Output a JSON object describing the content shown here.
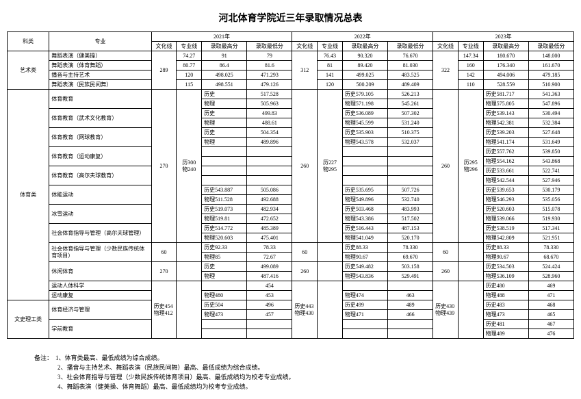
{
  "title": "河北体育学院近三年录取情况总表",
  "head": {
    "cat": "科类",
    "major": "专业",
    "y21": "2021年",
    "y22": "2022年",
    "y23": "2023年",
    "wh": "文化线",
    "zy": "专业线",
    "hi": "录取最高分",
    "lo": "录取最低分"
  },
  "cats": {
    "art": "艺术类",
    "sport": "体育类",
    "wen": "文史理工类"
  },
  "art_wh": {
    "y21": "289",
    "y22": "312",
    "y23": "322"
  },
  "art": [
    {
      "m": "舞蹈表演（健美操）",
      "z1": "74.27",
      "h1": "91",
      "l1": "79",
      "z2": "76.43",
      "h2": "90.320",
      "l2": "76.670",
      "z3": "147.34",
      "h3": "180.670",
      "l3": "148.000"
    },
    {
      "m": "舞蹈表演（体育舞蹈）",
      "z1": "80.77",
      "h1": "86.4",
      "l1": "81.6",
      "z2": "81",
      "h2": "89.420",
      "l2": "81.030",
      "z3": "160",
      "h3": "176.340",
      "l3": "161.670"
    },
    {
      "m": "播音与主持艺术",
      "z1": "120",
      "h1": "498.025",
      "l1": "471.293",
      "z2": "141",
      "h2": "499.025",
      "l2": "483.525",
      "z3": "142",
      "h3": "494.006",
      "l3": "479.185"
    },
    {
      "m": "舞蹈表演（民族民间舞）",
      "z1": "115",
      "h1": "498.551",
      "l1": "479.126",
      "z2": "120",
      "h2": "500.209",
      "l2": "489.409",
      "z3": "110",
      "h3": "528.559",
      "l3": "510.900"
    }
  ],
  "sport_zy": {
    "y21": {
      "top": "历300",
      "bot": "物240"
    },
    "y22": {
      "top": "历227",
      "bot": "物295"
    },
    "y23": {
      "top": "历295",
      "bot": "物296"
    }
  },
  "sport": {
    "whline_top": "270",
    "rows_top": [
      {
        "m": "体育教育",
        "h1a": "历史",
        "h1b": "",
        "l1a": "517.528",
        "l1b": "",
        "h2a": "历史579.105",
        "l2a": "526.213",
        "h3a": "历史581.717",
        "l3a": "541.363"
      },
      {
        "m": "",
        "h1a": "物理",
        "h1b": "",
        "l1a": "505.963",
        "l1b": "",
        "h2a": "物理571.198",
        "l2a": "545.261",
        "h3a": "物理575.805",
        "l3a": "547.896"
      },
      {
        "m": "体育教育（武术文化教育）",
        "h1a": "历史",
        "h1b": "",
        "l1a": "499.83",
        "l1b": "",
        "h2a": "历史536.089",
        "l2a": "507.302",
        "h3a": "历史539.143",
        "l3a": "530.494"
      },
      {
        "m": "",
        "h1a": "物理",
        "h1b": "",
        "l1a": "488.61",
        "l1b": "",
        "h2a": "物理545.599",
        "l2a": "531.240",
        "h3a": "物理542.381",
        "l3a": "532.384"
      },
      {
        "m": "体育教育（网球教育）",
        "h1a": "历史",
        "h1b": "",
        "l1a": "504.354",
        "l1b": "",
        "h2a": "历史535.903",
        "l2a": "510.375",
        "h3a": "历史539.203",
        "l3a": "527.648"
      },
      {
        "m": "",
        "h1a": "物理",
        "h1b": "",
        "l1a": "489.896",
        "l1b": "",
        "h2a": "物理543.578",
        "l2a": "532.037",
        "h3a": "物理541.174",
        "l3a": "531.649"
      },
      {
        "m": "体育教育（运动康复）",
        "h1a": "",
        "h1b": "",
        "l1a": "",
        "l1b": "",
        "h2a": "",
        "l2a": "",
        "h3a": "历史557.762",
        "l3a": "539.850"
      },
      {
        "m": "",
        "h1a": "",
        "h1b": "",
        "l1a": "",
        "l1b": "",
        "h2a": "",
        "l2a": "",
        "h3a": "物理554.162",
        "l3a": "543.868"
      },
      {
        "m": "体育教育（高尔夫球教育）",
        "h1a": "",
        "h1b": "",
        "l1a": "",
        "l1b": "",
        "h2a": "",
        "l2a": "",
        "h3a": "历史533.661",
        "l3a": "522.741"
      },
      {
        "m": "",
        "h1a": "",
        "h1b": "",
        "l1a": "",
        "l1b": "",
        "h2a": "",
        "l2a": "",
        "h3a": "物理542.544",
        "l3a": "527.946"
      },
      {
        "m": "体能运动",
        "h1a": "历史543.887",
        "h1b": "",
        "l1a": "505.086",
        "l1b": "",
        "h2a": "历史535.695",
        "l2a": "507.726",
        "h3a": "历史539.653",
        "l3a": "530.179"
      },
      {
        "m": "",
        "h1a": "物理511.528",
        "h1b": "",
        "l1a": "492.688",
        "l1b": "",
        "h2a": "物理549.896",
        "l2a": "532.740",
        "h3a": "物理546.293",
        "l3a": "535.056"
      },
      {
        "m": "冰雪运动",
        "h1a": "历史519.073",
        "h1b": "",
        "l1a": "482.934",
        "l1b": "",
        "h2a": "历史503.468",
        "l2a": "483.993",
        "h3a": "历史520.603",
        "l3a": "515.078"
      },
      {
        "m": "",
        "h1a": "物理519.81",
        "h1b": "",
        "l1a": "472.652",
        "l1b": "",
        "h2a": "物理543.386",
        "l2a": "517.502",
        "h3a": "物理539.066",
        "l3a": "519.930"
      },
      {
        "m": "社会体育指导与管理（高尔夫球管理）",
        "h1a": "历史514.772",
        "h1b": "",
        "l1a": "485.389",
        "l1b": "",
        "h2a": "历史516.443",
        "l2a": "487.153",
        "h3a": "历史538.519",
        "l3a": "517.341"
      },
      {
        "m": "",
        "h1a": "物理520.603",
        "h1b": "",
        "l1a": "475.401",
        "l1b": "",
        "h2a": "物理541.049",
        "l2a": "520.170",
        "h3a": "物理542.809",
        "l3a": "521.951"
      }
    ],
    "rows_60": [
      {
        "m": "社会体育指导与管理（少数民族传统体育项目）",
        "w1": "60",
        "h1a": "历史92.33",
        "l1a": "78.33",
        "w2": "60",
        "h2a": "历史88.33",
        "l2a": "78.330",
        "w3": "60",
        "h3a": "历史88.33",
        "l3a": "78.330"
      },
      {
        "m": "",
        "h1a": "物理85",
        "l1a": "72.67",
        "h2a": "物理90.67",
        "l2a": "69.670",
        "h3a": "物理90.67",
        "l3a": "68.670"
      }
    ],
    "rows_xx": [
      {
        "m": "休闲体育",
        "w1": "270",
        "h1a": "历史",
        "l1a": "499.089",
        "w2": "260",
        "h2a": "历史549.482",
        "l2a": "503.158",
        "w3": "260",
        "h3a": "历史534.503",
        "l3a": "524.424"
      },
      {
        "m": "",
        "h1a": "物理",
        "l1a": "487.416",
        "h2a": "物理543.836",
        "l2a": "529.491",
        "h3a": "物理536.109",
        "l3a": "528.960"
      }
    ],
    "rows_ydkx": [
      {
        "m": "运动人体科学",
        "h1a": "",
        "l1a": "454",
        "h2a": "",
        "l2a": "",
        "h3a": "历史480",
        "l3a": "469"
      },
      {
        "m": "运动康复",
        "h1a": "物理480",
        "l1a": "453",
        "h2a": "物理474",
        "l2a": "463",
        "h3a": "物理488",
        "l3a": "471"
      }
    ]
  },
  "wen": {
    "wh": {
      "y21a": "历史454",
      "y21b": "物理412",
      "y22a": "历史443",
      "y22b": "物理430",
      "y23a": "历史430",
      "y23b": "物理439"
    },
    "rows": [
      {
        "m": "体育经济与管理",
        "h1a": "历史504",
        "l1a": "496",
        "h2a": "历史499",
        "l2a": "489",
        "h3a": "历史483",
        "l3a": "468"
      },
      {
        "m": "",
        "h1a": "物理473",
        "l1a": "457",
        "h2a": "物理471",
        "l2a": "466",
        "h3a": "物理473",
        "l3a": "465"
      },
      {
        "m": "学前教育",
        "h1a": "",
        "l1a": "",
        "h2a": "",
        "l2a": "",
        "h3a": "历史481",
        "l3a": "467"
      },
      {
        "m": "",
        "h1a": "",
        "l1a": "",
        "h2a": "",
        "l2a": "",
        "h3a": "物理489",
        "l3a": "476"
      }
    ]
  },
  "foot": {
    "lbl": "备注：",
    "n1": "1、体育类最高、最低成绩为综合成绩。",
    "n2": "2、播音与主持艺术、舞蹈表演（民族民间舞）最高、最低成绩为综合成绩。",
    "n3": "3、社会体育指导与管理（少数民族传统体育项目）最高、最低成绩均为校考专业成绩。",
    "n4": "4、舞蹈表演（健美操、体育舞蹈）最高、最低成绩均为校考专业成绩。"
  }
}
